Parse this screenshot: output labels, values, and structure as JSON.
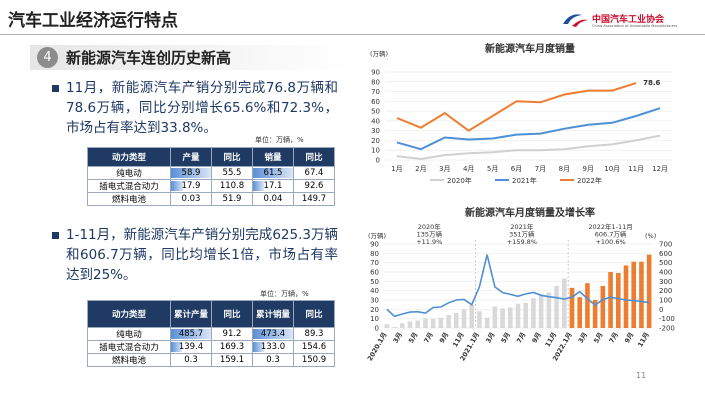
{
  "header": {
    "title": "汽车工业经济运行特点",
    "logo_cn": "中国汽车工业协会",
    "logo_en": "China Association of Automobile Manufacturers"
  },
  "section": {
    "number": "4",
    "title": "新能源汽车连创历史新高"
  },
  "bullets": [
    "11月，新能源汽车产销分别完成76.8万辆和78.6万辆，同比分别增长65.6%和72.3%，市场占有率达到33.8%。",
    "1-11月，新能源汽车产销分别完成625.3万辆和606.7万辆，同比均增长1倍，市场占有率达到25%。"
  ],
  "tables": [
    {
      "unit": "单位：万辆，%",
      "header": [
        "动力类型",
        "产量",
        "同比",
        "销量",
        "同比"
      ],
      "databar_columns": [
        1,
        3
      ],
      "rows": [
        [
          "纯电动",
          "58.9",
          "55.5",
          "61.5",
          "67.4"
        ],
        [
          "插电式混合动力",
          "17.9",
          "110.8",
          "17.1",
          "92.6"
        ],
        [
          "燃料电池",
          "0.03",
          "51.9",
          "0.04",
          "149.7"
        ]
      ]
    },
    {
      "unit": "单位：万辆，%",
      "header": [
        "动力类型",
        "累计产量",
        "同比",
        "累计销量",
        "同比"
      ],
      "databar_columns": [
        1,
        3
      ],
      "rows": [
        [
          "纯电动",
          "485.7",
          "91.2",
          "473.4",
          "89.3"
        ],
        [
          "插电式混合动力",
          "139.4",
          "169.3",
          "133.0",
          "154.6"
        ],
        [
          "燃料电池",
          "0.3",
          "159.1",
          "0.3",
          "150.9"
        ]
      ]
    }
  ],
  "page_number": "11",
  "chart_data": [
    {
      "type": "line",
      "title": "新能源汽车月度销量",
      "ylabel": "(万辆)",
      "categories": [
        "1月",
        "2月",
        "3月",
        "4月",
        "5月",
        "6月",
        "7月",
        "8月",
        "9月",
        "10月",
        "11月",
        "12月"
      ],
      "ylim": [
        0,
        90
      ],
      "yticks": [
        0,
        10,
        20,
        30,
        40,
        50,
        60,
        70,
        80,
        90
      ],
      "grid": true,
      "series": [
        {
          "name": "2020年",
          "color": "#d0d0d0",
          "values": [
            4,
            1,
            5,
            7,
            8,
            10,
            10,
            11,
            14,
            16,
            20,
            25
          ]
        },
        {
          "name": "2021年",
          "color": "#4f8fd6",
          "values": [
            18,
            11,
            23,
            21,
            22,
            26,
            27,
            32,
            36,
            38,
            45,
            53
          ]
        },
        {
          "name": "2022年",
          "color": "#ed7d31",
          "values": [
            43,
            33,
            48,
            30,
            45,
            60,
            59,
            67,
            71,
            71,
            78.6,
            null
          ],
          "value_labels": [
            null,
            null,
            null,
            null,
            null,
            null,
            null,
            null,
            null,
            null,
            "78.6",
            null
          ]
        }
      ]
    },
    {
      "type": "bar",
      "title": "新能源汽车月度销量及增长率",
      "ylabel": "(万辆)",
      "y2label": "(%)",
      "categories": [
        "2020.1月",
        null,
        "3月",
        null,
        "5月",
        null,
        "7月",
        null,
        "9月",
        null,
        "11月",
        null,
        "2021.1月",
        null,
        "3月",
        null,
        "5月",
        null,
        "7月",
        null,
        "9月",
        null,
        "11月",
        null,
        "2022.1月",
        null,
        "3月",
        null,
        "5月",
        null,
        "7月",
        null,
        "9月",
        null,
        "11月"
      ],
      "ylim": [
        0,
        90
      ],
      "yticks": [
        0,
        10,
        20,
        30,
        40,
        50,
        60,
        70,
        80,
        90
      ],
      "y2lim": [
        -200,
        700
      ],
      "y2ticks": [
        -200,
        -100,
        0,
        100,
        200,
        300,
        400,
        500,
        600,
        700
      ],
      "grid": true,
      "annotations": [
        [
          "2020年",
          "135万辆",
          "+11.9%"
        ],
        [
          "2021年",
          "351万辆",
          "+159.8%"
        ],
        [
          "2022年1-11月",
          "606.7万辆",
          "+100.6%"
        ]
      ],
      "series": [
        {
          "type": "bar",
          "color": "#d9d9d9",
          "values": [
            4,
            1,
            5,
            7,
            8,
            10,
            10,
            11,
            14,
            16,
            20,
            25,
            18,
            11,
            23,
            21,
            22,
            26,
            27,
            32,
            36,
            38,
            45,
            53,
            null,
            null,
            null,
            null,
            null,
            null,
            null,
            null,
            null,
            null,
            null
          ]
        },
        {
          "type": "bar",
          "color": "#ed7d31",
          "values": [
            null,
            null,
            null,
            null,
            null,
            null,
            null,
            null,
            null,
            null,
            null,
            null,
            null,
            null,
            null,
            null,
            null,
            null,
            null,
            null,
            null,
            null,
            null,
            null,
            43,
            33,
            48,
            30,
            45,
            60,
            59,
            67,
            71,
            71,
            78.6
          ]
        },
        {
          "type": "line",
          "axis": "y2",
          "color": "#4f8fd6",
          "values": [
            0,
            -75,
            -50,
            -30,
            -25,
            -40,
            20,
            25,
            70,
            100,
            105,
            50,
            240,
            585,
            240,
            180,
            160,
            140,
            165,
            180,
            150,
            135,
            125,
            110,
            130,
            190,
            115,
            45,
            105,
            130,
            115,
            100,
            95,
            85,
            72
          ]
        }
      ]
    }
  ]
}
